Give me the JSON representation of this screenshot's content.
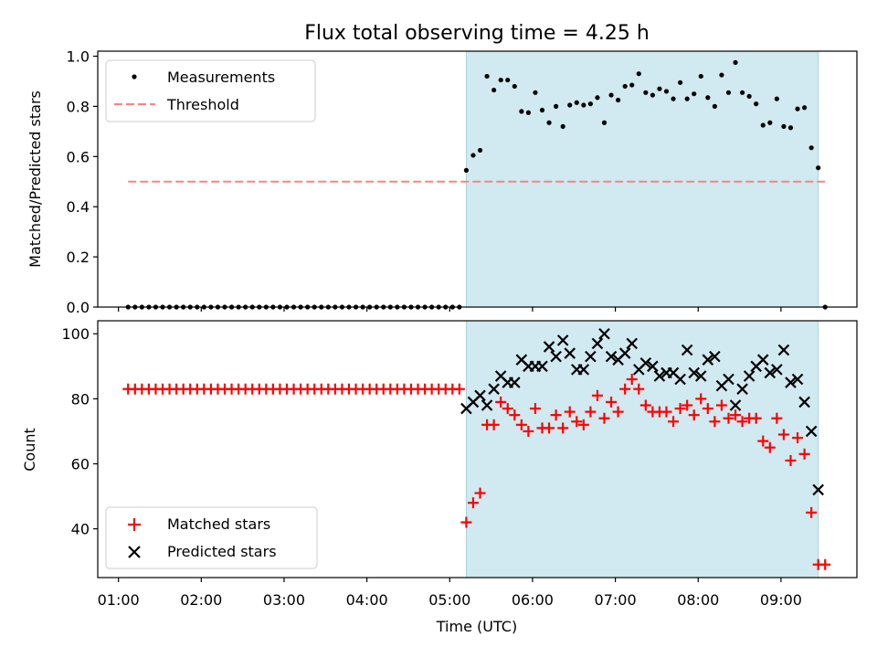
{
  "chart_data": {
    "title": "Flux total observing time = 4.25 h",
    "xlabel": "Time (UTC)",
    "xlim": [
      "00:45",
      "09:55"
    ],
    "xticks": [
      "01:00",
      "02:00",
      "03:00",
      "04:00",
      "05:00",
      "06:00",
      "07:00",
      "08:00",
      "09:00"
    ],
    "shaded_interval": [
      "05:12",
      "09:27"
    ],
    "colors": {
      "shade": "#d1e9f0",
      "threshold": "#ff8080",
      "matched": "#ff0000",
      "predicted": "#000000",
      "measurement": "#000000"
    },
    "panels": [
      {
        "type": "scatter",
        "ylabel": "Matched/Predicted stars",
        "ylim": [
          0,
          1.02
        ],
        "yticks": [
          "0.0",
          "0.2",
          "0.4",
          "0.6",
          "0.8",
          "1.0"
        ],
        "legend_position": "upper-left",
        "series": [
          {
            "name": "Measurements",
            "marker": "dot",
            "times": [
              "01:07",
              "01:12",
              "01:17",
              "01:22",
              "01:27",
              "01:32",
              "01:37",
              "01:42",
              "01:47",
              "01:52",
              "01:57",
              "02:02",
              "02:07",
              "02:12",
              "02:17",
              "02:22",
              "02:27",
              "02:32",
              "02:37",
              "02:42",
              "02:47",
              "02:52",
              "02:57",
              "03:02",
              "03:07",
              "03:12",
              "03:17",
              "03:22",
              "03:27",
              "03:32",
              "03:37",
              "03:42",
              "03:47",
              "03:52",
              "03:57",
              "04:02",
              "04:07",
              "04:12",
              "04:17",
              "04:22",
              "04:27",
              "04:32",
              "04:37",
              "04:42",
              "04:47",
              "04:52",
              "04:57",
              "05:02",
              "05:07",
              "05:12",
              "05:17",
              "05:22",
              "05:27",
              "05:32",
              "05:37",
              "05:42",
              "05:47",
              "05:52",
              "05:57",
              "06:02",
              "06:07",
              "06:12",
              "06:17",
              "06:22",
              "06:27",
              "06:32",
              "06:37",
              "06:42",
              "06:47",
              "06:52",
              "06:57",
              "07:02",
              "07:07",
              "07:12",
              "07:17",
              "07:22",
              "07:27",
              "07:32",
              "07:37",
              "07:42",
              "07:47",
              "07:52",
              "07:57",
              "08:02",
              "08:07",
              "08:12",
              "08:17",
              "08:22",
              "08:27",
              "08:32",
              "08:37",
              "08:42",
              "08:47",
              "08:52",
              "08:57",
              "09:02",
              "09:07",
              "09:12",
              "09:17",
              "09:22",
              "09:27",
              "09:32"
            ],
            "values": [
              0,
              0,
              0,
              0,
              0,
              0,
              0,
              0,
              0,
              0,
              0,
              0,
              0,
              0,
              0,
              0,
              0,
              0,
              0,
              0,
              0,
              0,
              0,
              0,
              0,
              0,
              0,
              0,
              0,
              0,
              0,
              0,
              0,
              0,
              0,
              0,
              0,
              0,
              0,
              0,
              0,
              0,
              0,
              0,
              0,
              0,
              0,
              0,
              0,
              0.545,
              0.605,
              0.625,
              0.92,
              0.865,
              0.905,
              0.905,
              0.88,
              0.78,
              0.775,
              0.855,
              0.785,
              0.735,
              0.8,
              0.72,
              0.805,
              0.815,
              0.805,
              0.81,
              0.835,
              0.735,
              0.845,
              0.825,
              0.88,
              0.885,
              0.93,
              0.855,
              0.845,
              0.87,
              0.86,
              0.83,
              0.895,
              0.83,
              0.85,
              0.92,
              0.835,
              0.8,
              0.925,
              0.855,
              0.975,
              0.855,
              0.84,
              0.81,
              0.725,
              0.735,
              0.83,
              0.72,
              0.715,
              0.79,
              0.795,
              0.635,
              0.555,
              0.0
            ]
          },
          {
            "name": "Threshold",
            "marker": "dashed-line",
            "times": [
              "01:07",
              "09:32"
            ],
            "values": [
              0.5,
              0.5
            ]
          }
        ]
      },
      {
        "type": "scatter",
        "ylabel": "Count",
        "ylim": [
          25,
          104
        ],
        "yticks": [
          "40",
          "60",
          "80",
          "100"
        ],
        "legend_position": "lower-left",
        "series": [
          {
            "name": "Matched stars",
            "marker": "plus",
            "times": [
              "01:07",
              "01:12",
              "01:17",
              "01:22",
              "01:27",
              "01:32",
              "01:37",
              "01:42",
              "01:47",
              "01:52",
              "01:57",
              "02:02",
              "02:07",
              "02:12",
              "02:17",
              "02:22",
              "02:27",
              "02:32",
              "02:37",
              "02:42",
              "02:47",
              "02:52",
              "02:57",
              "03:02",
              "03:07",
              "03:12",
              "03:17",
              "03:22",
              "03:27",
              "03:32",
              "03:37",
              "03:42",
              "03:47",
              "03:52",
              "03:57",
              "04:02",
              "04:07",
              "04:12",
              "04:17",
              "04:22",
              "04:27",
              "04:32",
              "04:37",
              "04:42",
              "04:47",
              "04:52",
              "04:57",
              "05:02",
              "05:07",
              "05:12",
              "05:17",
              "05:22",
              "05:27",
              "05:32",
              "05:37",
              "05:42",
              "05:47",
              "05:52",
              "05:57",
              "06:02",
              "06:07",
              "06:12",
              "06:17",
              "06:22",
              "06:27",
              "06:32",
              "06:37",
              "06:42",
              "06:47",
              "06:52",
              "06:57",
              "07:02",
              "07:07",
              "07:12",
              "07:17",
              "07:22",
              "07:27",
              "07:32",
              "07:37",
              "07:42",
              "07:47",
              "07:52",
              "07:57",
              "08:02",
              "08:07",
              "08:12",
              "08:17",
              "08:22",
              "08:27",
              "08:32",
              "08:37",
              "08:42",
              "08:47",
              "08:52",
              "08:57",
              "09:02",
              "09:07",
              "09:12",
              "09:17",
              "09:22",
              "09:27",
              "09:32"
            ],
            "values": [
              83,
              83,
              83,
              83,
              83,
              83,
              83,
              83,
              83,
              83,
              83,
              83,
              83,
              83,
              83,
              83,
              83,
              83,
              83,
              83,
              83,
              83,
              83,
              83,
              83,
              83,
              83,
              83,
              83,
              83,
              83,
              83,
              83,
              83,
              83,
              83,
              83,
              83,
              83,
              83,
              83,
              83,
              83,
              83,
              83,
              83,
              83,
              83,
              83,
              42,
              48,
              51,
              72,
              72,
              79,
              77,
              75,
              72,
              70,
              77,
              71,
              71,
              75,
              71,
              76,
              73,
              72,
              76,
              81,
              74,
              79,
              76,
              83,
              86,
              83,
              78,
              76,
              76,
              76,
              73,
              77,
              78,
              75,
              80,
              77,
              73,
              78,
              74,
              75,
              73,
              74,
              74,
              67,
              65,
              74,
              69,
              61,
              68,
              63,
              45,
              29,
              29
            ]
          },
          {
            "name": "Predicted stars",
            "marker": "x",
            "times": [
              "05:12",
              "05:17",
              "05:22",
              "05:27",
              "05:32",
              "05:37",
              "05:42",
              "05:47",
              "05:52",
              "05:57",
              "06:02",
              "06:07",
              "06:12",
              "06:17",
              "06:22",
              "06:27",
              "06:32",
              "06:37",
              "06:42",
              "06:47",
              "06:52",
              "06:57",
              "07:02",
              "07:07",
              "07:12",
              "07:17",
              "07:22",
              "07:27",
              "07:32",
              "07:37",
              "07:42",
              "07:47",
              "07:52",
              "07:57",
              "08:02",
              "08:07",
              "08:12",
              "08:17",
              "08:22",
              "08:27",
              "08:32",
              "08:37",
              "08:42",
              "08:47",
              "08:52",
              "08:57",
              "09:02",
              "09:07",
              "09:12",
              "09:17",
              "09:22",
              "09:27"
            ],
            "values": [
              77,
              79,
              81,
              78,
              83,
              87,
              85,
              85,
              92,
              90,
              90,
              90,
              96,
              93,
              98,
              94,
              89,
              89,
              93,
              97,
              100,
              93,
              92,
              94,
              97,
              89,
              91,
              90,
              87,
              88,
              88,
              86,
              95,
              88,
              87,
              92,
              93,
              84,
              86,
              78,
              83,
              87,
              90,
              92,
              88,
              89,
              95,
              85,
              86,
              79,
              70,
              52
            ]
          }
        ]
      }
    ]
  }
}
